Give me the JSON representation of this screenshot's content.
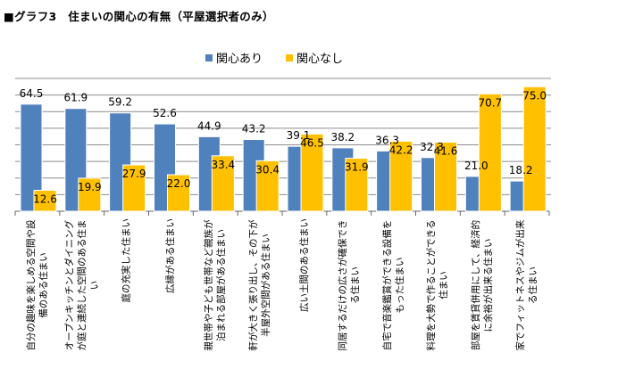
{
  "chart_data": {
    "type": "bar",
    "title": "■グラフ3　住まいの関心の有無（平屋選択者のみ）",
    "categories": [
      "自分の趣味を楽しめる空間や設備のある住まい",
      "オープンキッチンとダイニングが庭と連続した空間のある住まい",
      "庭の充実した住まい",
      "広縁がある住まい",
      "親世帯や子ども世帯など親族が泊まれる部屋がある住まい",
      "軒が大きく張り出し、その下が半屋外空間がある住まい",
      "広い土間のある住まい",
      "同居するだけの広さが確保できる住まい",
      "自宅で音楽鑑賞ができる設備をもった住まい",
      "料理を大勢で作ることができる住まい",
      "部屋を賃貸併用にして、経済的に余裕が出来る住まい",
      "家でフィットネスやジムが出来る住まい"
    ],
    "series": [
      {
        "name": "関心あり",
        "color": "#4f81bd",
        "values": [
          64.5,
          61.9,
          59.2,
          52.6,
          44.9,
          43.2,
          39.1,
          38.2,
          36.3,
          32.3,
          21.0,
          18.2
        ]
      },
      {
        "name": "関心なし",
        "color": "#ffc000",
        "values": [
          12.6,
          19.9,
          27.9,
          22.0,
          33.4,
          30.4,
          46.5,
          31.9,
          42.2,
          41.6,
          70.7,
          75.0
        ]
      }
    ],
    "ylim": [
      0,
      80
    ],
    "grid": true,
    "legend": "top"
  }
}
